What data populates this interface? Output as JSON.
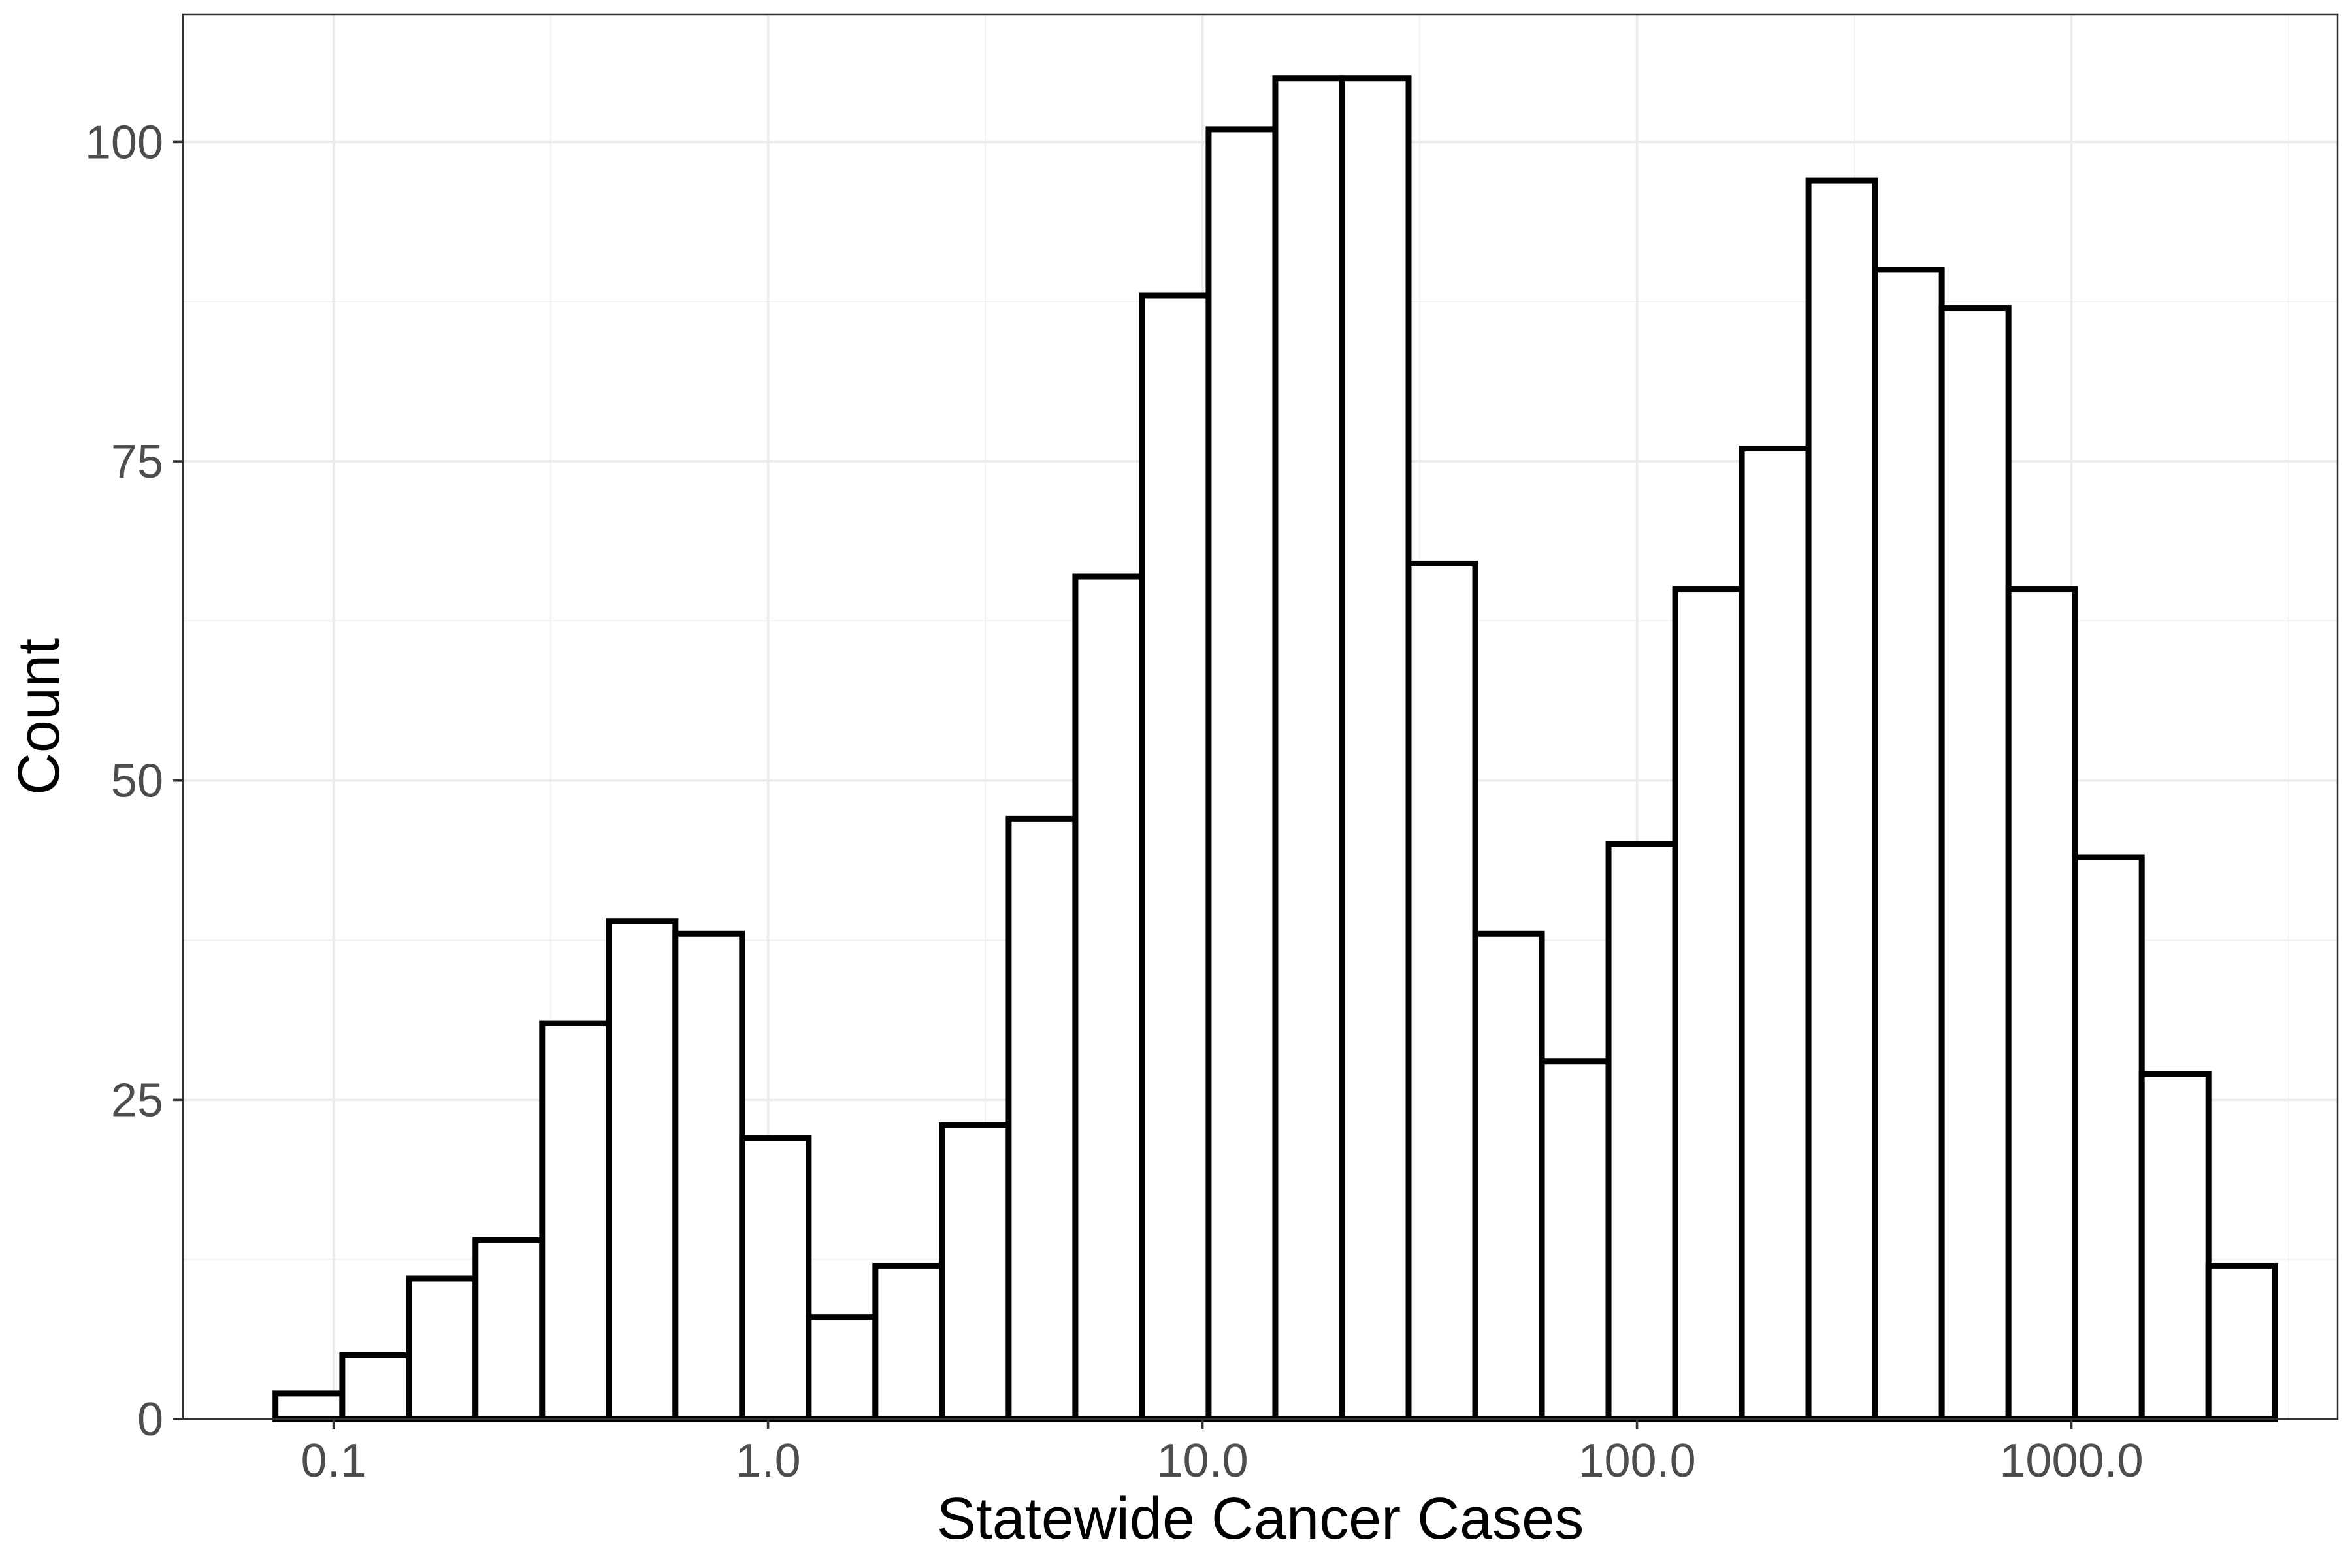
{
  "chart_data": {
    "type": "bar",
    "subtype": "histogram",
    "xlabel": "Statewide Cancer Cases",
    "ylabel": "Count",
    "x_scale": "log10",
    "x_ticks": [
      0.1,
      1.0,
      10.0,
      100.0,
      1000.0
    ],
    "x_tick_labels": [
      "0.1",
      "1.0",
      "10.0",
      "100.0",
      "1000.0"
    ],
    "y_ticks": [
      0,
      25,
      50,
      75,
      100
    ],
    "y_tick_labels": [
      "0",
      "25",
      "50",
      "75",
      "100"
    ],
    "ylim": [
      0,
      110
    ],
    "xlim": [
      0.045,
      4100
    ],
    "grid": true,
    "bar_fill": "#ffffff",
    "bar_outline": "#000000",
    "bins": [
      {
        "x_start": 0.0735,
        "x_end": 0.1047,
        "count": 2
      },
      {
        "x_start": 0.1047,
        "x_end": 0.149,
        "count": 5
      },
      {
        "x_start": 0.149,
        "x_end": 0.2121,
        "count": 11
      },
      {
        "x_start": 0.2121,
        "x_end": 0.302,
        "count": 14
      },
      {
        "x_start": 0.302,
        "x_end": 0.4299,
        "count": 31
      },
      {
        "x_start": 0.4299,
        "x_end": 0.6121,
        "count": 39
      },
      {
        "x_start": 0.6121,
        "x_end": 0.8714,
        "count": 38
      },
      {
        "x_start": 0.8714,
        "x_end": 1.2406,
        "count": 22
      },
      {
        "x_start": 1.2406,
        "x_end": 1.7662,
        "count": 8
      },
      {
        "x_start": 1.7662,
        "x_end": 2.5145,
        "count": 12
      },
      {
        "x_start": 2.5145,
        "x_end": 3.5799,
        "count": 23
      },
      {
        "x_start": 3.5799,
        "x_end": 5.0967,
        "count": 47
      },
      {
        "x_start": 5.0967,
        "x_end": 7.2561,
        "count": 66
      },
      {
        "x_start": 7.2561,
        "x_end": 10.3303,
        "count": 88
      },
      {
        "x_start": 10.3303,
        "x_end": 14.7071,
        "count": 101
      },
      {
        "x_start": 14.7071,
        "x_end": 20.9383,
        "count": 105
      },
      {
        "x_start": 20.9383,
        "x_end": 29.8096,
        "count": 105
      },
      {
        "x_start": 29.8096,
        "x_end": 42.4396,
        "count": 67
      },
      {
        "x_start": 42.4396,
        "x_end": 60.4207,
        "count": 38
      },
      {
        "x_start": 60.4207,
        "x_end": 86.0202,
        "count": 28
      },
      {
        "x_start": 86.0202,
        "x_end": 122.4661,
        "count": 45
      },
      {
        "x_start": 122.4661,
        "x_end": 174.3539,
        "count": 65
      },
      {
        "x_start": 174.3539,
        "x_end": 248.2262,
        "count": 76
      },
      {
        "x_start": 248.2262,
        "x_end": 353.3971,
        "count": 97
      },
      {
        "x_start": 353.3971,
        "x_end": 503.1279,
        "count": 90
      },
      {
        "x_start": 503.1279,
        "x_end": 716.2983,
        "count": 87
      },
      {
        "x_start": 716.2983,
        "x_end": 1019.78,
        "count": 65
      },
      {
        "x_start": 1019.78,
        "x_end": 1451.84,
        "count": 44
      },
      {
        "x_start": 1451.84,
        "x_end": 2066.95,
        "count": 27
      },
      {
        "x_start": 2066.95,
        "x_end": 2942.68,
        "count": 12
      }
    ]
  }
}
